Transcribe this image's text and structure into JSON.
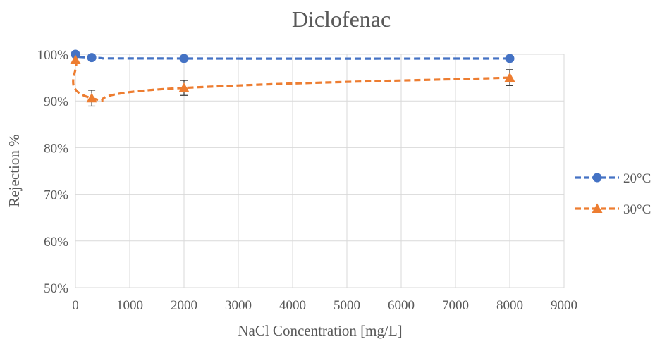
{
  "chart_data": {
    "type": "line",
    "title": "Diclofenac",
    "xlabel": "NaCl Concentration [mg/L]",
    "ylabel": "Rejection %",
    "xlim": [
      0,
      9000
    ],
    "ylim": [
      50,
      100
    ],
    "x_ticks": [
      0,
      1000,
      2000,
      3000,
      4000,
      5000,
      6000,
      7000,
      8000,
      9000
    ],
    "y_ticks": [
      50,
      60,
      70,
      80,
      90,
      100
    ],
    "y_tick_labels": [
      "50%",
      "60%",
      "70%",
      "80%",
      "90%",
      "100%"
    ],
    "grid": true,
    "legend_position": "right",
    "series": [
      {
        "name": "20°C",
        "color": "#4472C4",
        "marker": "circle",
        "line_style": "dashed",
        "x": [
          0,
          300,
          2000,
          8000
        ],
        "y": [
          100,
          99.3,
          99.1,
          99.1
        ],
        "error": [
          0,
          0,
          0,
          0
        ]
      },
      {
        "name": "30°C",
        "color": "#ED7D31",
        "marker": "triangle",
        "line_style": "dashed",
        "x": [
          0,
          300,
          2000,
          8000
        ],
        "y": [
          98.8,
          90.6,
          92.8,
          95.0
        ],
        "error": [
          0,
          1.7,
          1.6,
          1.7
        ]
      }
    ]
  }
}
